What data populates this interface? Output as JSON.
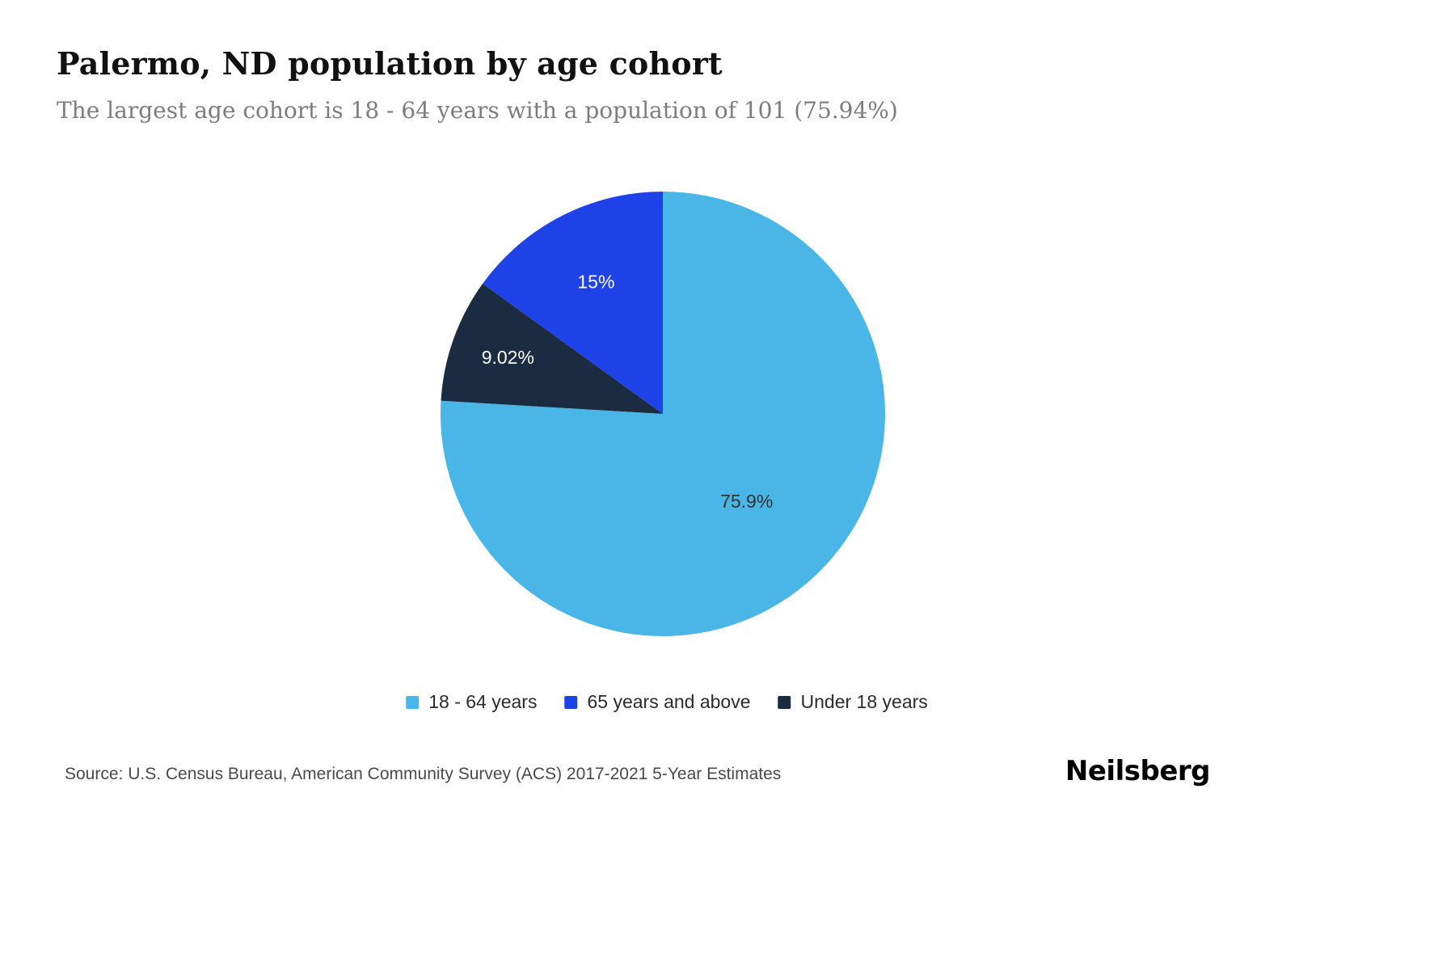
{
  "page": {
    "title": "Palermo, ND population by age cohort",
    "subtitle": "The largest age cohort is 18 - 64 years with a population of 101 (75.94%)",
    "source": "Source: U.S. Census Bureau, American Community Survey (ACS) 2017-2021 5-Year Estimates",
    "brand": "Neilsberg"
  },
  "chart_data": {
    "type": "pie",
    "title": "Palermo, ND population by age cohort",
    "subtitle": "The largest age cohort is 18 - 64 years with a population of 101 (75.94%)",
    "start_angle_deg": 0,
    "direction": "clockwise",
    "slices": [
      {
        "label": "18 - 64 years",
        "value": 75.94,
        "display": "75.9%",
        "color": "#4ab6e8",
        "text_color": "#333333",
        "label_r": 0.55
      },
      {
        "label": "Under 18 years",
        "value": 9.02,
        "display": "9.02%",
        "color": "#1b2c42",
        "text_color": "#ffffff",
        "label_r": 0.74
      },
      {
        "label": "65 years and above",
        "value": 15.04,
        "display": "15%",
        "color": "#1e41e8",
        "text_color": "#ffffff",
        "label_r": 0.66
      }
    ],
    "legend": [
      {
        "label": "18 - 64 years",
        "color": "#4ab6e8"
      },
      {
        "label": "65 years and above",
        "color": "#1e41e8"
      },
      {
        "label": "Under 18 years",
        "color": "#1b2c42"
      }
    ],
    "legend_position": "bottom-center",
    "notes": {
      "largest_cohort_population": "101",
      "largest_cohort_share": "75.94%"
    }
  }
}
